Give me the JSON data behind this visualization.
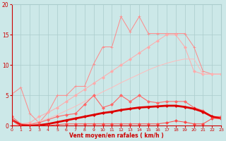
{
  "x": [
    0,
    1,
    2,
    3,
    4,
    5,
    6,
    7,
    8,
    9,
    10,
    11,
    12,
    13,
    14,
    15,
    16,
    17,
    18,
    19,
    20,
    21,
    22,
    23
  ],
  "series": [
    {
      "name": "spiky_light",
      "color": "#ff8888",
      "linewidth": 0.7,
      "marker": "+",
      "markersize": 3.0,
      "values": [
        5.2,
        6.3,
        2.0,
        0.5,
        2.2,
        5.0,
        5.0,
        6.5,
        6.5,
        10.2,
        13.0,
        13.0,
        18.0,
        15.5,
        18.0,
        15.2,
        15.2,
        15.2,
        15.2,
        15.2,
        13.0,
        9.0,
        8.5,
        8.5
      ]
    },
    {
      "name": "diagonal_upper",
      "color": "#ffaaaa",
      "linewidth": 0.7,
      "marker": "D",
      "markersize": 2.0,
      "values": [
        0.0,
        0.3,
        0.5,
        1.5,
        2.2,
        3.0,
        4.0,
        5.0,
        6.0,
        7.0,
        8.0,
        9.0,
        10.0,
        11.0,
        12.0,
        13.0,
        14.0,
        15.0,
        15.0,
        13.0,
        9.0,
        8.5,
        8.5,
        8.5
      ]
    },
    {
      "name": "diagonal_lower",
      "color": "#ffbbbb",
      "linewidth": 0.7,
      "marker": null,
      "markersize": 0,
      "values": [
        0.0,
        0.1,
        0.3,
        0.7,
        1.2,
        1.8,
        2.5,
        3.2,
        4.0,
        4.8,
        5.6,
        6.3,
        7.1,
        7.8,
        8.5,
        9.2,
        9.8,
        10.3,
        10.7,
        11.0,
        11.0,
        8.5,
        8.5,
        8.5
      ]
    },
    {
      "name": "medium_line",
      "color": "#ff6666",
      "linewidth": 0.8,
      "marker": "D",
      "markersize": 2.0,
      "values": [
        1.5,
        0.3,
        0.2,
        0.5,
        1.0,
        1.5,
        1.8,
        2.0,
        3.5,
        5.0,
        3.0,
        3.5,
        5.0,
        4.0,
        5.0,
        4.0,
        3.8,
        4.0,
        4.0,
        4.0,
        3.0,
        2.5,
        1.5,
        1.5
      ]
    },
    {
      "name": "bold_red",
      "color": "#dd0000",
      "linewidth": 2.0,
      "marker": "D",
      "markersize": 2.0,
      "values": [
        1.0,
        0.1,
        0.0,
        0.1,
        0.3,
        0.6,
        0.9,
        1.2,
        1.5,
        1.8,
        2.1,
        2.3,
        2.6,
        2.8,
        3.0,
        3.1,
        3.2,
        3.3,
        3.3,
        3.1,
        2.8,
        2.3,
        1.5,
        1.2
      ]
    },
    {
      "name": "min_line",
      "color": "#ff4444",
      "linewidth": 0.7,
      "marker": "D",
      "markersize": 2.0,
      "values": [
        1.0,
        0.0,
        0.0,
        0.0,
        0.0,
        0.2,
        0.3,
        0.3,
        0.3,
        0.3,
        0.3,
        0.3,
        0.3,
        0.3,
        0.3,
        0.3,
        0.3,
        0.5,
        0.8,
        0.6,
        0.3,
        0.3,
        1.2,
        1.2
      ]
    }
  ],
  "xlim": [
    0,
    23
  ],
  "ylim": [
    0,
    20
  ],
  "yticks": [
    0,
    5,
    10,
    15,
    20
  ],
  "xticks": [
    0,
    1,
    2,
    3,
    4,
    5,
    6,
    7,
    8,
    9,
    10,
    11,
    12,
    13,
    14,
    15,
    16,
    17,
    18,
    19,
    20,
    21,
    22,
    23
  ],
  "xlabel": "Vent moyen/en rafales ( km/h )",
  "background_color": "#cce8e8",
  "grid_color": "#aacccc",
  "tick_color": "#cc0000",
  "label_color": "#cc0000"
}
